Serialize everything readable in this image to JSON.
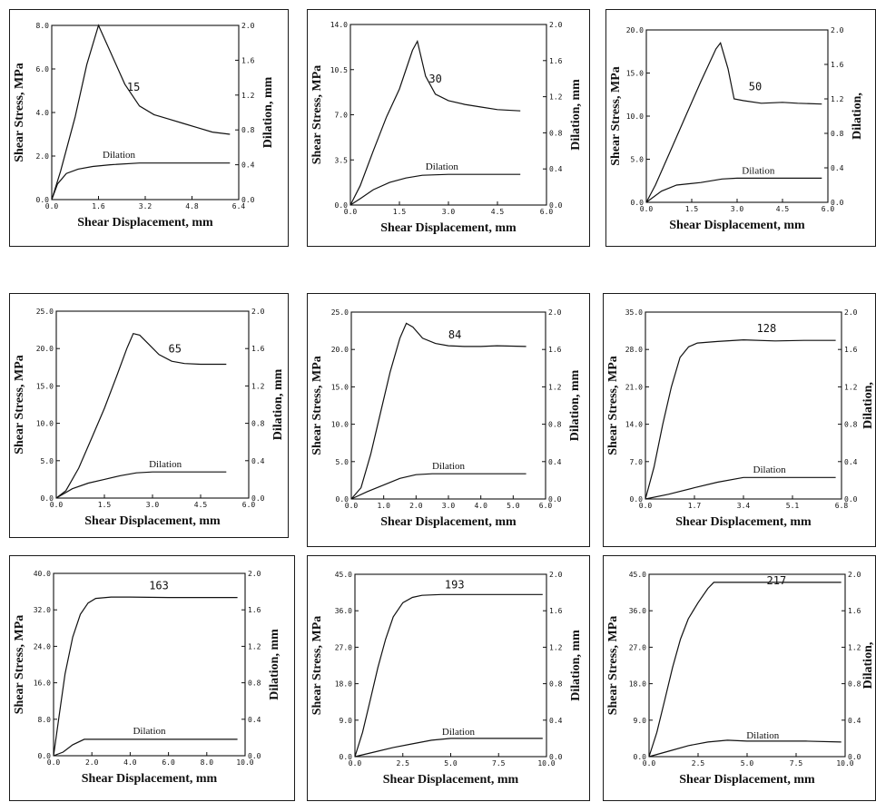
{
  "chart_data": [
    {
      "type": "line",
      "panel_id": "p1",
      "xlabel": "Shear Displacement,  mm",
      "ylabel": "Shear Stress,  MPa",
      "y2label": "Dilation,  mm",
      "xlim": [
        0,
        6.4
      ],
      "ylim": [
        0,
        8.0
      ],
      "y2lim": [
        0,
        2.0
      ],
      "xticks": [
        "0.0",
        "1.6",
        "3.2",
        "4.8",
        "6.4"
      ],
      "yticks": [
        "0.0",
        "2.0",
        "4.0",
        "6.0",
        "8.0"
      ],
      "y2ticks": [
        "0.0",
        "0.4",
        "0.8",
        "1.2",
        "1.6",
        "2.0"
      ],
      "series": [
        {
          "name": "15",
          "x": [
            0,
            0.3,
            0.8,
            1.2,
            1.6,
            2.0,
            2.5,
            3.0,
            3.5,
            4.0,
            4.5,
            5.0,
            5.5,
            6.1
          ],
          "y": [
            0,
            1.3,
            3.8,
            6.2,
            8.0,
            6.8,
            5.3,
            4.3,
            3.9,
            3.7,
            3.5,
            3.3,
            3.1,
            3.0
          ],
          "label_at": [
            2.8,
            5.0
          ]
        },
        {
          "name": "Dilation",
          "axis": "y2",
          "x": [
            0,
            0.2,
            0.5,
            0.9,
            1.4,
            2.0,
            3.0,
            4.0,
            5.0,
            6.1
          ],
          "y": [
            0,
            0.18,
            0.3,
            0.35,
            0.38,
            0.4,
            0.42,
            0.42,
            0.42,
            0.42
          ],
          "label_at": [
            2.3,
            0.48
          ]
        }
      ]
    },
    {
      "type": "line",
      "panel_id": "p2",
      "xlabel": "Shear Displacement,  mm",
      "ylabel": "Shear Stress,  MPa",
      "y2label": "Dilation,  mm",
      "xlim": [
        0,
        6.0
      ],
      "ylim": [
        0,
        14.0
      ],
      "y2lim": [
        0,
        2.0
      ],
      "xticks": [
        "0.0",
        "1.5",
        "3.0",
        "4.5",
        "6.0"
      ],
      "yticks": [
        "0.0",
        "3.5",
        "7.0",
        "10.5",
        "14.0"
      ],
      "y2ticks": [
        "0.0",
        "0.4",
        "0.8",
        "1.2",
        "1.6",
        "2.0"
      ],
      "series": [
        {
          "name": "30",
          "x": [
            0,
            0.3,
            0.7,
            1.1,
            1.5,
            1.9,
            2.05,
            2.3,
            2.6,
            3.0,
            3.5,
            4.0,
            4.5,
            5.2
          ],
          "y": [
            0,
            1.5,
            4.2,
            6.8,
            9.0,
            12.0,
            12.7,
            10.0,
            8.6,
            8.1,
            7.8,
            7.6,
            7.4,
            7.3
          ],
          "label_at": [
            2.6,
            9.5
          ]
        },
        {
          "name": "Dilation",
          "axis": "y2",
          "x": [
            0,
            0.3,
            0.7,
            1.2,
            1.7,
            2.2,
            3.0,
            4.0,
            5.2
          ],
          "y": [
            0,
            0.07,
            0.17,
            0.25,
            0.3,
            0.33,
            0.34,
            0.34,
            0.34
          ],
          "label_at": [
            2.8,
            0.39
          ]
        }
      ]
    },
    {
      "type": "line",
      "panel_id": "p3",
      "xlabel": "Shear Displacement,  mm",
      "ylabel": "Shear Stress,  MPa",
      "y2label": "Dilation,",
      "xlim": [
        0,
        6.0
      ],
      "ylim": [
        0,
        20.0
      ],
      "y2lim": [
        0,
        2.0
      ],
      "xticks": [
        "0.0",
        "1.5",
        "3.0",
        "4.5",
        "6.0"
      ],
      "yticks": [
        "0.0",
        "5.0",
        "10.0",
        "15.0",
        "20.0"
      ],
      "y2ticks": [
        "0.0",
        "0.4",
        "0.8",
        "1.2",
        "1.6",
        "2.0"
      ],
      "series": [
        {
          "name": "50",
          "x": [
            0,
            0.3,
            0.8,
            1.3,
            1.8,
            2.3,
            2.45,
            2.7,
            2.9,
            3.2,
            3.8,
            4.5,
            5.0,
            5.8
          ],
          "y": [
            0,
            2.0,
            6.0,
            10.0,
            14.0,
            17.8,
            18.5,
            15.5,
            12.0,
            11.8,
            11.5,
            11.6,
            11.5,
            11.4
          ],
          "label_at": [
            3.6,
            13.0
          ]
        },
        {
          "name": "Dilation",
          "axis": "y2",
          "x": [
            0,
            0.5,
            1.0,
            1.8,
            2.5,
            3.0,
            4.0,
            5.0,
            5.8
          ],
          "y": [
            0,
            0.13,
            0.2,
            0.23,
            0.27,
            0.28,
            0.28,
            0.28,
            0.28
          ],
          "label_at": [
            3.7,
            0.33
          ]
        }
      ]
    },
    {
      "type": "line",
      "panel_id": "p4",
      "xlabel": "Shear Displacement,  mm",
      "ylabel": "Shear Stress,  MPa",
      "y2label": "Dilation,  mm",
      "xlim": [
        0,
        6.0
      ],
      "ylim": [
        0,
        25.0
      ],
      "y2lim": [
        0,
        2.0
      ],
      "xticks": [
        "0.0",
        "1.5",
        "3.0",
        "4.5",
        "6.0"
      ],
      "yticks": [
        "0.0",
        "5.0",
        "10.0",
        "15.0",
        "20.0",
        "25.0"
      ],
      "y2ticks": [
        "0.0",
        "0.4",
        "0.8",
        "1.2",
        "1.6",
        "2.0"
      ],
      "series": [
        {
          "name": "65",
          "x": [
            0,
            0.3,
            0.7,
            1.1,
            1.5,
            1.9,
            2.2,
            2.4,
            2.6,
            2.9,
            3.2,
            3.6,
            4.0,
            4.5,
            5.3
          ],
          "y": [
            0,
            1.0,
            4.0,
            8.0,
            12.0,
            16.5,
            20.0,
            22.0,
            21.8,
            20.5,
            19.2,
            18.3,
            18.0,
            17.9,
            17.9
          ],
          "label_at": [
            3.7,
            19.5
          ]
        },
        {
          "name": "Dilation",
          "axis": "y2",
          "x": [
            0,
            0.5,
            1.0,
            1.5,
            2.0,
            2.5,
            3.0,
            4.0,
            5.3
          ],
          "y": [
            0,
            0.1,
            0.16,
            0.2,
            0.24,
            0.27,
            0.28,
            0.28,
            0.28
          ],
          "label_at": [
            3.4,
            0.33
          ]
        }
      ]
    },
    {
      "type": "line",
      "panel_id": "p5",
      "xlabel": "Shear Displacement,  mm",
      "ylabel": "Shear Stress,  MPa",
      "y2label": "Dilation,  mm",
      "xlim": [
        0,
        6.0
      ],
      "ylim": [
        0,
        25.0
      ],
      "y2lim": [
        0,
        2.0
      ],
      "xticks": [
        "0.0",
        "1.0",
        "2.0",
        "3.0",
        "4.0",
        "5.0",
        "6.0"
      ],
      "yticks": [
        "0.0",
        "5.0",
        "10.0",
        "15.0",
        "20.0",
        "25.0"
      ],
      "y2ticks": [
        "0.0",
        "0.4",
        "0.8",
        "1.2",
        "1.6",
        "2.0"
      ],
      "series": [
        {
          "name": "84",
          "x": [
            0,
            0.3,
            0.6,
            0.9,
            1.2,
            1.5,
            1.7,
            1.9,
            2.2,
            2.6,
            3.0,
            3.5,
            4.0,
            4.5,
            5.4
          ],
          "y": [
            0,
            1.5,
            6.0,
            11.5,
            17.0,
            21.5,
            23.5,
            23.0,
            21.5,
            20.8,
            20.5,
            20.4,
            20.4,
            20.5,
            20.4
          ],
          "label_at": [
            3.2,
            21.5
          ]
        },
        {
          "name": "Dilation",
          "axis": "y2",
          "x": [
            0,
            0.5,
            1.0,
            1.5,
            2.0,
            2.5,
            3.0,
            4.0,
            5.4
          ],
          "y": [
            0,
            0.08,
            0.15,
            0.22,
            0.26,
            0.27,
            0.27,
            0.27,
            0.27
          ],
          "label_at": [
            3.0,
            0.32
          ]
        }
      ]
    },
    {
      "type": "line",
      "panel_id": "p6",
      "xlabel": "Shear Displacement,  mm",
      "ylabel": "Shear Stress,  MPa",
      "y2label": "Dilation,",
      "xlim": [
        0,
        6.8
      ],
      "ylim": [
        0,
        35.0
      ],
      "y2lim": [
        0,
        2.0
      ],
      "xticks": [
        "0.0",
        "1.7",
        "3.4",
        "5.1",
        "6.8"
      ],
      "yticks": [
        "0.0",
        "7.0",
        "14.0",
        "21.0",
        "28.0",
        "35.0"
      ],
      "y2ticks": [
        "0.0",
        "0.4",
        "0.8",
        "1.2",
        "1.6",
        "2.0"
      ],
      "series": [
        {
          "name": "128",
          "x": [
            0,
            0.3,
            0.6,
            0.9,
            1.2,
            1.5,
            1.8,
            2.5,
            3.4,
            4.5,
            5.5,
            6.6
          ],
          "y": [
            0,
            6.0,
            14.0,
            21.0,
            26.5,
            28.5,
            29.2,
            29.5,
            29.8,
            29.6,
            29.7,
            29.7
          ],
          "label_at": [
            4.2,
            31.3
          ]
        },
        {
          "name": "Dilation",
          "axis": "y2",
          "x": [
            0,
            0.8,
            1.7,
            2.5,
            3.4,
            4.5,
            5.5,
            6.6
          ],
          "y": [
            0,
            0.05,
            0.12,
            0.18,
            0.23,
            0.23,
            0.23,
            0.23
          ],
          "label_at": [
            4.3,
            0.28
          ]
        }
      ]
    },
    {
      "type": "line",
      "panel_id": "p7",
      "xlabel": "Shear Displacement,  mm",
      "ylabel": "Shear Stress,  MPa",
      "y2label": "Dilation,  mm",
      "xlim": [
        0,
        10.0
      ],
      "ylim": [
        0,
        40.0
      ],
      "y2lim": [
        0,
        2.0
      ],
      "xticks": [
        "0.0",
        "2.0",
        "4.0",
        "6.0",
        "8.0",
        "10.0"
      ],
      "yticks": [
        "0.0",
        "8.0",
        "16.0",
        "24.0",
        "32.0",
        "40.0"
      ],
      "y2ticks": [
        "0.0",
        "0.4",
        "0.8",
        "1.2",
        "1.6",
        "2.0"
      ],
      "series": [
        {
          "name": "163",
          "x": [
            0,
            0.3,
            0.6,
            1.0,
            1.4,
            1.8,
            2.2,
            3.0,
            4.0,
            6.0,
            8.0,
            9.6
          ],
          "y": [
            0,
            9.0,
            18.0,
            26.0,
            31.0,
            33.5,
            34.5,
            34.8,
            34.8,
            34.7,
            34.7,
            34.7
          ],
          "label_at": [
            5.5,
            36.5
          ]
        },
        {
          "name": "Dilation",
          "axis": "y2",
          "x": [
            0,
            0.5,
            1.0,
            1.6,
            2.5,
            4.0,
            6.0,
            8.0,
            9.6
          ],
          "y": [
            0,
            0.04,
            0.12,
            0.18,
            0.18,
            0.18,
            0.18,
            0.18,
            0.18
          ],
          "label_at": [
            5.0,
            0.24
          ]
        }
      ]
    },
    {
      "type": "line",
      "panel_id": "p8",
      "xlabel": "Shear Displacement,  mm",
      "ylabel": "Shear Stress,  MPa",
      "y2label": "Dilation,  mm",
      "xlim": [
        0,
        10.0
      ],
      "ylim": [
        0,
        45.0
      ],
      "y2lim": [
        0,
        2.0
      ],
      "xticks": [
        "0.0",
        "2.5",
        "5.0",
        "7.5",
        "10.0"
      ],
      "yticks": [
        "0.0",
        "9.0",
        "18.0",
        "27.0",
        "36.0",
        "45.0"
      ],
      "y2ticks": [
        "0.0",
        "0.4",
        "0.8",
        "1.2",
        "1.6",
        "2.0"
      ],
      "series": [
        {
          "name": "193",
          "x": [
            0,
            0.4,
            0.8,
            1.2,
            1.6,
            2.0,
            2.5,
            3.0,
            3.5,
            4.5,
            6.0,
            8.0,
            9.8
          ],
          "y": [
            0,
            6.0,
            14.0,
            22.0,
            29.0,
            34.5,
            38.0,
            39.3,
            39.8,
            40.0,
            40.0,
            40.0,
            40.0
          ],
          "label_at": [
            5.2,
            41.5
          ]
        },
        {
          "name": "Dilation",
          "axis": "y2",
          "x": [
            0,
            1.0,
            2.0,
            3.0,
            4.0,
            5.0,
            6.0,
            8.0,
            9.8
          ],
          "y": [
            0,
            0.05,
            0.1,
            0.14,
            0.18,
            0.2,
            0.2,
            0.2,
            0.2
          ],
          "label_at": [
            5.4,
            0.24
          ]
        }
      ]
    },
    {
      "type": "line",
      "panel_id": "p9",
      "xlabel": "Shear Displacement,  mm",
      "ylabel": "Shear Stress,  MPa",
      "y2label": "Dilation,",
      "xlim": [
        0,
        10.0
      ],
      "ylim": [
        0,
        45.0
      ],
      "y2lim": [
        0,
        2.0
      ],
      "xticks": [
        "0.0",
        "2.5",
        "5.0",
        "7.5",
        "10.0"
      ],
      "yticks": [
        "0.0",
        "9.0",
        "18.0",
        "27.0",
        "36.0",
        "45.0"
      ],
      "y2ticks": [
        "0.0",
        "0.4",
        "0.8",
        "1.2",
        "1.6",
        "2.0"
      ],
      "series": [
        {
          "name": "217",
          "x": [
            0,
            0.4,
            0.8,
            1.2,
            1.6,
            2.0,
            2.5,
            3.0,
            3.3,
            4.0,
            5.5,
            7.5,
            9.8
          ],
          "y": [
            0,
            6.0,
            14.0,
            22.0,
            29.0,
            34.0,
            38.0,
            41.5,
            43.0,
            43.0,
            43.0,
            43.0,
            43.0
          ],
          "label_at": [
            6.5,
            42.5
          ]
        },
        {
          "name": "Dilation",
          "axis": "y2",
          "x": [
            0,
            1.0,
            2.0,
            3.0,
            4.0,
            5.0,
            6.0,
            8.0,
            9.8
          ],
          "y": [
            0,
            0.06,
            0.12,
            0.16,
            0.18,
            0.17,
            0.17,
            0.17,
            0.16
          ],
          "label_at": [
            5.8,
            0.2
          ]
        }
      ]
    }
  ]
}
